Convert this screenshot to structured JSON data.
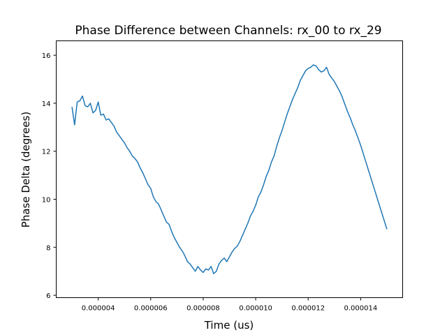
{
  "chart_data": {
    "type": "line",
    "title": "Phase Difference between Channels: rx_00 to rx_29",
    "xlabel": "Time (us)",
    "ylabel": "Phase Delta (degrees)",
    "xlim": [
      2.4e-06,
      1.56e-05
    ],
    "ylim": [
      5.9,
      16.6
    ],
    "xticks": [
      4e-06,
      6e-06,
      8e-06,
      1e-05,
      1.2e-05,
      1.4e-05
    ],
    "xtick_labels": [
      "0.000004",
      "0.000006",
      "0.000008",
      "0.000010",
      "0.000012",
      "0.000014"
    ],
    "yticks": [
      6,
      8,
      10,
      12,
      14,
      16
    ],
    "ytick_labels": [
      "6",
      "8",
      "10",
      "12",
      "14",
      "16"
    ],
    "grid": false,
    "series": [
      {
        "color": "#1f77b4",
        "x": [
          3e-06,
          3.1e-06,
          3.2e-06,
          3.3e-06,
          3.4e-06,
          3.5e-06,
          3.6e-06,
          3.7e-06,
          3.8e-06,
          3.9e-06,
          4e-06,
          4.1e-06,
          4.2e-06,
          4.3e-06,
          4.4e-06,
          4.5e-06,
          4.6e-06,
          4.7e-06,
          4.8e-06,
          4.9e-06,
          5e-06,
          5.1e-06,
          5.2e-06,
          5.3e-06,
          5.4e-06,
          5.5e-06,
          5.6e-06,
          5.7e-06,
          5.8e-06,
          5.9e-06,
          6e-06,
          6.1e-06,
          6.2e-06,
          6.3e-06,
          6.4e-06,
          6.5e-06,
          6.6e-06,
          6.7e-06,
          6.8e-06,
          6.9e-06,
          7e-06,
          7.1e-06,
          7.2e-06,
          7.3e-06,
          7.4e-06,
          7.5e-06,
          7.6e-06,
          7.7e-06,
          7.8e-06,
          7.9e-06,
          8e-06,
          8.1e-06,
          8.2e-06,
          8.3e-06,
          8.4e-06,
          8.5e-06,
          8.6e-06,
          8.7e-06,
          8.8e-06,
          8.9e-06,
          9e-06,
          9.1e-06,
          9.2e-06,
          9.3e-06,
          9.4e-06,
          9.5e-06,
          9.6e-06,
          9.7e-06,
          9.8e-06,
          9.9e-06,
          1e-05,
          1.01e-05,
          1.02e-05,
          1.03e-05,
          1.04e-05,
          1.05e-05,
          1.06e-05,
          1.07e-05,
          1.08e-05,
          1.09e-05,
          1.1e-05,
          1.11e-05,
          1.12e-05,
          1.13e-05,
          1.14e-05,
          1.15e-05,
          1.16e-05,
          1.17e-05,
          1.18e-05,
          1.19e-05,
          1.2e-05,
          1.21e-05,
          1.22e-05,
          1.23e-05,
          1.24e-05,
          1.25e-05,
          1.26e-05,
          1.27e-05,
          1.28e-05,
          1.29e-05,
          1.3e-05,
          1.31e-05,
          1.32e-05,
          1.33e-05,
          1.34e-05,
          1.35e-05,
          1.36e-05,
          1.37e-05,
          1.38e-05,
          1.39e-05,
          1.4e-05,
          1.41e-05,
          1.42e-05,
          1.43e-05,
          1.44e-05,
          1.45e-05,
          1.46e-05,
          1.47e-05,
          1.48e-05,
          1.49e-05,
          1.5e-05
        ],
        "y": [
          13.85,
          13.1,
          14.05,
          14.1,
          14.3,
          13.9,
          13.85,
          14.0,
          13.6,
          13.7,
          14.05,
          13.5,
          13.55,
          13.3,
          13.35,
          13.2,
          13.05,
          12.8,
          12.65,
          12.5,
          12.35,
          12.15,
          12.0,
          11.8,
          11.7,
          11.55,
          11.3,
          11.1,
          10.85,
          10.6,
          10.45,
          10.1,
          9.9,
          9.8,
          9.55,
          9.3,
          9.05,
          8.95,
          8.65,
          8.4,
          8.2,
          8.0,
          7.85,
          7.65,
          7.4,
          7.3,
          7.15,
          7.0,
          7.2,
          7.05,
          6.95,
          7.1,
          7.05,
          7.2,
          6.9,
          7.0,
          7.3,
          7.45,
          7.55,
          7.4,
          7.6,
          7.8,
          7.95,
          8.05,
          8.25,
          8.5,
          8.75,
          9.0,
          9.3,
          9.5,
          9.75,
          10.1,
          10.3,
          10.6,
          10.95,
          11.2,
          11.55,
          11.8,
          12.2,
          12.55,
          12.85,
          13.2,
          13.55,
          13.85,
          14.15,
          14.4,
          14.65,
          14.95,
          15.15,
          15.35,
          15.45,
          15.5,
          15.6,
          15.55,
          15.4,
          15.3,
          15.35,
          15.5,
          15.2,
          15.05,
          14.9,
          14.7,
          14.5,
          14.25,
          13.95,
          13.65,
          13.4,
          13.1,
          12.85,
          12.55,
          12.25,
          11.9,
          11.55,
          11.2,
          10.85,
          10.5,
          10.15,
          9.8,
          9.45,
          9.1,
          8.75
        ]
      }
    ]
  }
}
